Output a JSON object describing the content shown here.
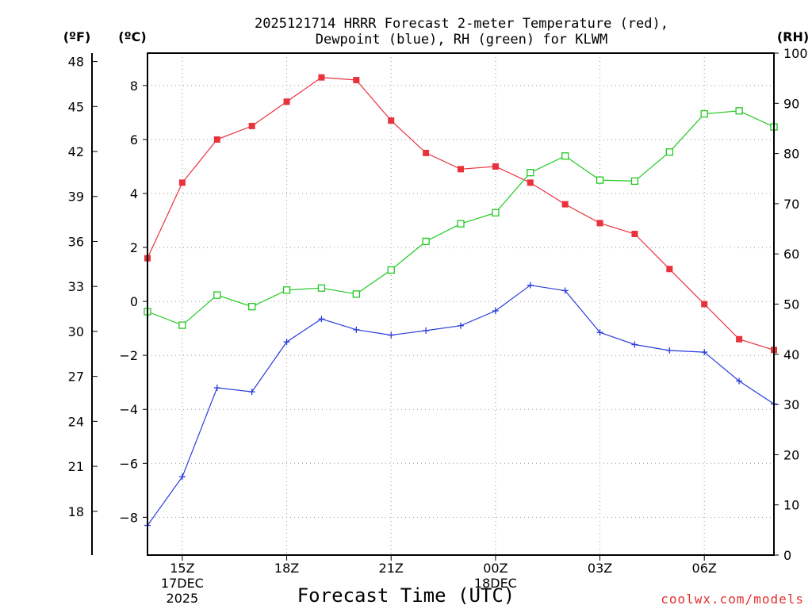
{
  "chart_data": {
    "type": "line",
    "title_lines": [
      "2025121714 HRRR Forecast 2-meter Temperature (red),",
      "Dewpoint (blue), RH (green) for KLWM"
    ],
    "xlabel": "Forecast Time (UTC)",
    "credit": "coolwx.com/models",
    "left_axis_f_label": "(ºF)",
    "left_axis_c_label": "(ºC)",
    "right_axis_label": "(RH)",
    "x_hours": [
      14,
      15,
      16,
      17,
      18,
      19,
      20,
      21,
      22,
      23,
      24,
      25,
      26,
      27,
      28,
      29,
      30,
      31,
      32
    ],
    "xlim": [
      14,
      32
    ],
    "x_ticks": [
      {
        "hour": 15,
        "lines": [
          "15Z",
          "17DEC",
          "2025"
        ]
      },
      {
        "hour": 18,
        "lines": [
          "18Z"
        ]
      },
      {
        "hour": 21,
        "lines": [
          "21Z"
        ]
      },
      {
        "hour": 24,
        "lines": [
          "00Z",
          "18DEC"
        ]
      },
      {
        "hour": 27,
        "lines": [
          "03Z"
        ]
      },
      {
        "hour": 30,
        "lines": [
          "06Z"
        ]
      }
    ],
    "ylim_c": [
      -9.4,
      9.2
    ],
    "y_ticks_c": [
      -8,
      -6,
      -4,
      -2,
      0,
      2,
      4,
      6,
      8
    ],
    "y_ticks_c_labels": [
      "−8",
      "−6",
      "−4",
      "−2",
      "0",
      "2",
      "4",
      "6",
      "8"
    ],
    "y_ticks_f": [
      18,
      21,
      24,
      27,
      30,
      33,
      36,
      39,
      42,
      45,
      48
    ],
    "ylim_rh": [
      0,
      100
    ],
    "y_ticks_rh": [
      0,
      10,
      20,
      30,
      40,
      50,
      60,
      70,
      80,
      90,
      100
    ],
    "series": [
      {
        "name": "2-meter Temperature",
        "unit": "C",
        "color": "#e8323c",
        "marker": "filled-square",
        "values": [
          1.6,
          4.4,
          6.0,
          6.5,
          7.4,
          8.3,
          8.2,
          6.7,
          5.5,
          4.9,
          5.0,
          4.4,
          3.6,
          2.9,
          2.5,
          1.2,
          -0.1,
          -1.4,
          -1.8
        ]
      },
      {
        "name": "Dewpoint",
        "unit": "C",
        "color": "#2a3cdc",
        "marker": "plus",
        "values": [
          -8.3,
          -6.5,
          -3.2,
          -3.35,
          -1.5,
          -0.65,
          -1.05,
          -1.25,
          -1.08,
          -0.9,
          -0.35,
          0.6,
          0.4,
          -1.15,
          -1.6,
          -1.82,
          -1.88,
          -2.95,
          -3.8
        ]
      },
      {
        "name": "RH",
        "unit": "%",
        "color": "#22c822",
        "marker": "open-square",
        "values": [
          48.5,
          45.8,
          51.8,
          49.5,
          52.8,
          53.2,
          52.0,
          56.8,
          62.5,
          66.0,
          68.2,
          76.2,
          79.5,
          74.7,
          74.5,
          80.3,
          87.9,
          88.5,
          85.3
        ]
      }
    ]
  }
}
